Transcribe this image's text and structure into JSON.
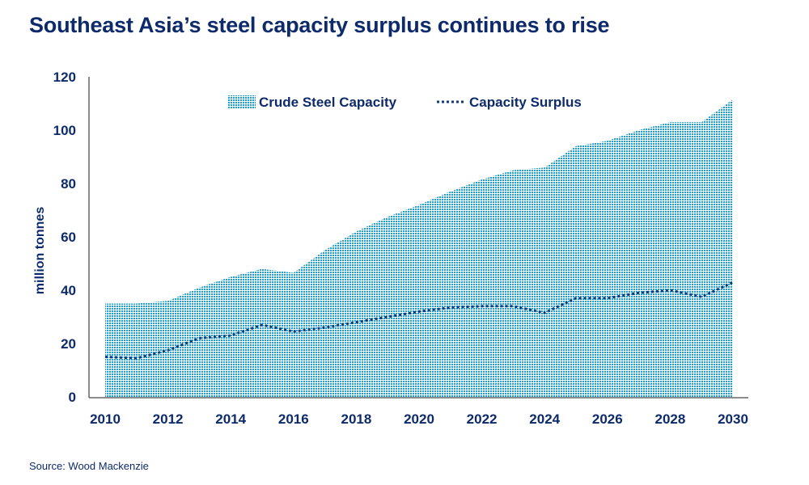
{
  "chart_data": {
    "type": "area",
    "title": "Southeast Asia’s steel capacity surplus continues to rise",
    "ylabel": "million tonnes",
    "xlabel": "",
    "x": [
      2010,
      2011,
      2012,
      2013,
      2014,
      2015,
      2016,
      2017,
      2018,
      2019,
      2020,
      2021,
      2022,
      2023,
      2024,
      2025,
      2026,
      2027,
      2028,
      2029,
      2030
    ],
    "x_ticks": [
      "2010",
      "2012",
      "2014",
      "2016",
      "2018",
      "2020",
      "2022",
      "2024",
      "2026",
      "2028",
      "2030"
    ],
    "y_ticks": [
      "0",
      "20",
      "40",
      "60",
      "80",
      "100",
      "120"
    ],
    "ylim": [
      0,
      120
    ],
    "xlim": [
      2010,
      2030
    ],
    "grid": false,
    "legend_position": "top",
    "series": [
      {
        "name": "Crude Steel Capacity",
        "style": "dotted-area",
        "color": "#1a9fd8",
        "values": [
          35,
          35,
          36,
          41,
          45,
          48,
          46.5,
          55,
          62,
          67.5,
          72,
          77,
          81.5,
          85,
          86,
          94,
          96,
          100,
          103,
          103,
          111.5
        ]
      },
      {
        "name": "Capacity Surplus",
        "style": "dotted-line",
        "color": "#0d3b7a",
        "values": [
          15,
          14.5,
          17.5,
          22,
          23,
          27,
          24.5,
          26,
          28,
          30,
          32,
          33.5,
          34,
          34,
          31.5,
          37,
          37,
          39,
          40,
          37.5,
          43
        ]
      }
    ],
    "source": "Source: Wood Mackenzie"
  }
}
